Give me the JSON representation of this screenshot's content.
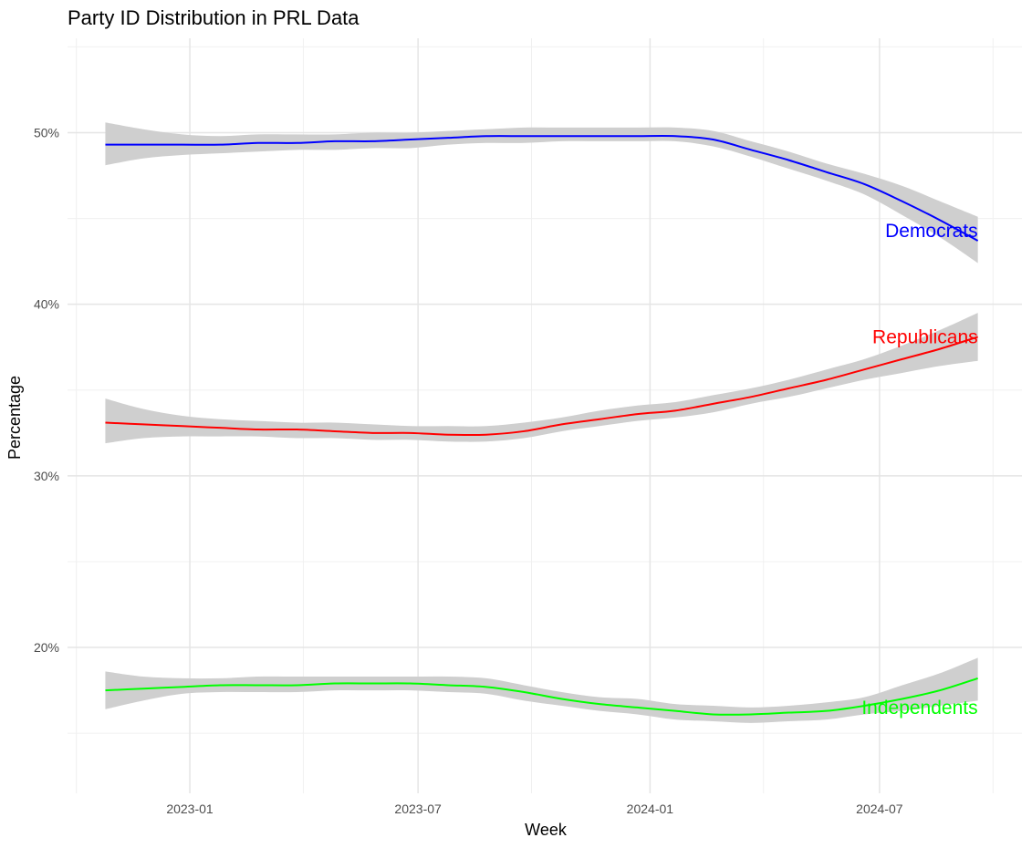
{
  "chart_data": {
    "type": "line",
    "title": "Party ID Distribution in PRL Data",
    "xlabel": "Week",
    "ylabel": "Percentage",
    "x_ticks": [
      "2023-01",
      "2023-07",
      "2024-01",
      "2024-07"
    ],
    "y_ticks": [
      20,
      30,
      40,
      50
    ],
    "y_tick_format": "%",
    "ylim": [
      11.5,
      55.5
    ],
    "xlim": [
      "2022-09-26",
      "2024-10-22"
    ],
    "grid": true,
    "legend": "none",
    "band_color": "#cfcfcf",
    "series": [
      {
        "name": "Democrats",
        "color": "#0000ff",
        "points": [
          {
            "x": "2022-10-26",
            "y": 49.3,
            "lo": 48.1,
            "hi": 50.6
          },
          {
            "x": "2022-11-25",
            "y": 49.3,
            "lo": 48.5,
            "hi": 50.2
          },
          {
            "x": "2022-12-26",
            "y": 49.3,
            "lo": 48.7,
            "hi": 49.9
          },
          {
            "x": "2023-01-25",
            "y": 49.3,
            "lo": 48.8,
            "hi": 49.8
          },
          {
            "x": "2023-02-24",
            "y": 49.4,
            "lo": 48.9,
            "hi": 49.9
          },
          {
            "x": "2023-03-27",
            "y": 49.4,
            "lo": 49.0,
            "hi": 49.9
          },
          {
            "x": "2023-04-26",
            "y": 49.5,
            "lo": 49.0,
            "hi": 49.9
          },
          {
            "x": "2023-05-26",
            "y": 49.5,
            "lo": 49.1,
            "hi": 50.0
          },
          {
            "x": "2023-06-25",
            "y": 49.6,
            "lo": 49.1,
            "hi": 50.0
          },
          {
            "x": "2023-07-25",
            "y": 49.7,
            "lo": 49.3,
            "hi": 50.1
          },
          {
            "x": "2023-08-24",
            "y": 49.8,
            "lo": 49.4,
            "hi": 50.2
          },
          {
            "x": "2023-09-23",
            "y": 49.8,
            "lo": 49.4,
            "hi": 50.3
          },
          {
            "x": "2023-10-23",
            "y": 49.8,
            "lo": 49.5,
            "hi": 50.3
          },
          {
            "x": "2023-11-22",
            "y": 49.8,
            "lo": 49.5,
            "hi": 50.3
          },
          {
            "x": "2023-12-22",
            "y": 49.8,
            "lo": 49.5,
            "hi": 50.3
          },
          {
            "x": "2024-01-21",
            "y": 49.8,
            "lo": 49.5,
            "hi": 50.3
          },
          {
            "x": "2024-02-20",
            "y": 49.6,
            "lo": 49.2,
            "hi": 50.1
          },
          {
            "x": "2024-03-21",
            "y": 49.0,
            "lo": 48.6,
            "hi": 49.5
          },
          {
            "x": "2024-04-20",
            "y": 48.4,
            "lo": 47.9,
            "hi": 48.9
          },
          {
            "x": "2024-05-20",
            "y": 47.7,
            "lo": 47.2,
            "hi": 48.2
          },
          {
            "x": "2024-06-19",
            "y": 47.0,
            "lo": 46.4,
            "hi": 47.6
          },
          {
            "x": "2024-07-19",
            "y": 46.0,
            "lo": 45.2,
            "hi": 46.9
          },
          {
            "x": "2024-08-18",
            "y": 44.9,
            "lo": 43.9,
            "hi": 46.0
          },
          {
            "x": "2024-09-17",
            "y": 43.7,
            "lo": 42.4,
            "hi": 45.1
          }
        ]
      },
      {
        "name": "Republicans",
        "color": "#ff0000",
        "points": [
          {
            "x": "2022-10-26",
            "y": 33.1,
            "lo": 31.9,
            "hi": 34.5
          },
          {
            "x": "2022-11-25",
            "y": 33.0,
            "lo": 32.2,
            "hi": 33.9
          },
          {
            "x": "2022-12-26",
            "y": 32.9,
            "lo": 32.3,
            "hi": 33.5
          },
          {
            "x": "2023-01-25",
            "y": 32.8,
            "lo": 32.3,
            "hi": 33.3
          },
          {
            "x": "2023-02-24",
            "y": 32.7,
            "lo": 32.3,
            "hi": 33.2
          },
          {
            "x": "2023-03-27",
            "y": 32.7,
            "lo": 32.2,
            "hi": 33.1
          },
          {
            "x": "2023-04-26",
            "y": 32.6,
            "lo": 32.2,
            "hi": 33.1
          },
          {
            "x": "2023-05-26",
            "y": 32.5,
            "lo": 32.1,
            "hi": 33.0
          },
          {
            "x": "2023-06-25",
            "y": 32.5,
            "lo": 32.1,
            "hi": 32.9
          },
          {
            "x": "2023-07-25",
            "y": 32.4,
            "lo": 32.0,
            "hi": 32.9
          },
          {
            "x": "2023-08-24",
            "y": 32.4,
            "lo": 32.0,
            "hi": 32.9
          },
          {
            "x": "2023-09-23",
            "y": 32.6,
            "lo": 32.2,
            "hi": 33.1
          },
          {
            "x": "2023-10-23",
            "y": 33.0,
            "lo": 32.6,
            "hi": 33.4
          },
          {
            "x": "2023-11-22",
            "y": 33.3,
            "lo": 32.9,
            "hi": 33.8
          },
          {
            "x": "2023-12-22",
            "y": 33.6,
            "lo": 33.2,
            "hi": 34.1
          },
          {
            "x": "2024-01-21",
            "y": 33.8,
            "lo": 33.4,
            "hi": 34.3
          },
          {
            "x": "2024-02-20",
            "y": 34.2,
            "lo": 33.7,
            "hi": 34.7
          },
          {
            "x": "2024-03-21",
            "y": 34.6,
            "lo": 34.2,
            "hi": 35.1
          },
          {
            "x": "2024-04-20",
            "y": 35.1,
            "lo": 34.6,
            "hi": 35.6
          },
          {
            "x": "2024-05-20",
            "y": 35.6,
            "lo": 35.1,
            "hi": 36.2
          },
          {
            "x": "2024-06-19",
            "y": 36.2,
            "lo": 35.6,
            "hi": 36.8
          },
          {
            "x": "2024-07-19",
            "y": 36.8,
            "lo": 36.0,
            "hi": 37.6
          },
          {
            "x": "2024-08-18",
            "y": 37.4,
            "lo": 36.4,
            "hi": 38.5
          },
          {
            "x": "2024-09-17",
            "y": 38.1,
            "lo": 36.7,
            "hi": 39.5
          }
        ]
      },
      {
        "name": "Independents",
        "color": "#00ff00",
        "points": [
          {
            "x": "2022-10-26",
            "y": 17.5,
            "lo": 16.4,
            "hi": 18.6
          },
          {
            "x": "2022-11-25",
            "y": 17.6,
            "lo": 16.9,
            "hi": 18.3
          },
          {
            "x": "2022-12-26",
            "y": 17.7,
            "lo": 17.3,
            "hi": 18.2
          },
          {
            "x": "2023-01-25",
            "y": 17.8,
            "lo": 17.4,
            "hi": 18.2
          },
          {
            "x": "2023-02-24",
            "y": 17.8,
            "lo": 17.4,
            "hi": 18.3
          },
          {
            "x": "2023-03-27",
            "y": 17.8,
            "lo": 17.4,
            "hi": 18.3
          },
          {
            "x": "2023-04-26",
            "y": 17.9,
            "lo": 17.5,
            "hi": 18.3
          },
          {
            "x": "2023-05-26",
            "y": 17.9,
            "lo": 17.5,
            "hi": 18.3
          },
          {
            "x": "2023-06-25",
            "y": 17.9,
            "lo": 17.5,
            "hi": 18.3
          },
          {
            "x": "2023-07-25",
            "y": 17.8,
            "lo": 17.4,
            "hi": 18.3
          },
          {
            "x": "2023-08-24",
            "y": 17.7,
            "lo": 17.3,
            "hi": 18.2
          },
          {
            "x": "2023-09-23",
            "y": 17.4,
            "lo": 16.9,
            "hi": 17.8
          },
          {
            "x": "2023-10-23",
            "y": 17.0,
            "lo": 16.6,
            "hi": 17.4
          },
          {
            "x": "2023-11-22",
            "y": 16.7,
            "lo": 16.3,
            "hi": 17.1
          },
          {
            "x": "2023-12-22",
            "y": 16.5,
            "lo": 16.1,
            "hi": 17.0
          },
          {
            "x": "2024-01-21",
            "y": 16.3,
            "lo": 15.8,
            "hi": 16.7
          },
          {
            "x": "2024-02-20",
            "y": 16.1,
            "lo": 15.7,
            "hi": 16.6
          },
          {
            "x": "2024-03-21",
            "y": 16.1,
            "lo": 15.6,
            "hi": 16.5
          },
          {
            "x": "2024-04-20",
            "y": 16.2,
            "lo": 15.7,
            "hi": 16.6
          },
          {
            "x": "2024-05-20",
            "y": 16.3,
            "lo": 15.8,
            "hi": 16.8
          },
          {
            "x": "2024-06-19",
            "y": 16.6,
            "lo": 16.1,
            "hi": 17.1
          },
          {
            "x": "2024-07-19",
            "y": 17.0,
            "lo": 16.3,
            "hi": 17.8
          },
          {
            "x": "2024-08-18",
            "y": 17.5,
            "lo": 16.6,
            "hi": 18.5
          },
          {
            "x": "2024-09-17",
            "y": 18.2,
            "lo": 16.9,
            "hi": 19.4
          }
        ]
      }
    ],
    "annotations": [
      {
        "text": "Democrats",
        "series": "Democrats",
        "x": "2024-09-17",
        "y": 44.3
      },
      {
        "text": "Republicans",
        "series": "Republicans",
        "x": "2024-09-17",
        "y": 38.1
      },
      {
        "text": "Independents",
        "series": "Independents",
        "x": "2024-09-17",
        "y": 16.5
      }
    ]
  }
}
